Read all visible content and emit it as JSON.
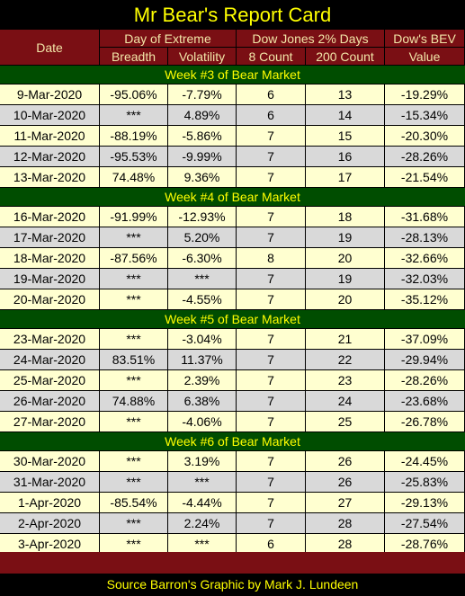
{
  "title": "Mr Bear's Report Card",
  "footer": "Source Barron's  Graphic by Mark J. Lundeen",
  "header": {
    "date": "Date",
    "day_of_extreme": "Day of Extreme",
    "dow_jones_2pct": "Dow Jones 2% Days",
    "dows_bev": "Dow's BEV",
    "breadth": "Breadth",
    "volatility": "Volatility",
    "count8": "8 Count",
    "count200": "200 Count",
    "value": "Value"
  },
  "weeks": [
    {
      "label": "Week #3 of Bear Market",
      "rows": [
        {
          "date": "9-Mar-2020",
          "breadth": "-95.06%",
          "volatility": "-7.79%",
          "count8": "6",
          "count200": "13",
          "bev": "-19.29%"
        },
        {
          "date": "10-Mar-2020",
          "breadth": "***",
          "volatility": "4.89%",
          "count8": "6",
          "count200": "14",
          "bev": "-15.34%"
        },
        {
          "date": "11-Mar-2020",
          "breadth": "-88.19%",
          "volatility": "-5.86%",
          "count8": "7",
          "count200": "15",
          "bev": "-20.30%"
        },
        {
          "date": "12-Mar-2020",
          "breadth": "-95.53%",
          "volatility": "-9.99%",
          "count8": "7",
          "count200": "16",
          "bev": "-28.26%"
        },
        {
          "date": "13-Mar-2020",
          "breadth": "74.48%",
          "volatility": "9.36%",
          "count8": "7",
          "count200": "17",
          "bev": "-21.54%"
        }
      ]
    },
    {
      "label": "Week #4 of Bear Market",
      "rows": [
        {
          "date": "16-Mar-2020",
          "breadth": "-91.99%",
          "volatility": "-12.93%",
          "count8": "7",
          "count200": "18",
          "bev": "-31.68%"
        },
        {
          "date": "17-Mar-2020",
          "breadth": "***",
          "volatility": "5.20%",
          "count8": "7",
          "count200": "19",
          "bev": "-28.13%"
        },
        {
          "date": "18-Mar-2020",
          "breadth": "-87.56%",
          "volatility": "-6.30%",
          "count8": "8",
          "count200": "20",
          "bev": "-32.66%"
        },
        {
          "date": "19-Mar-2020",
          "breadth": "***",
          "volatility": "***",
          "count8": "7",
          "count200": "19",
          "bev": "-32.03%"
        },
        {
          "date": "20-Mar-2020",
          "breadth": "***",
          "volatility": "-4.55%",
          "count8": "7",
          "count200": "20",
          "bev": "-35.12%"
        }
      ]
    },
    {
      "label": "Week #5 of Bear Market",
      "rows": [
        {
          "date": "23-Mar-2020",
          "breadth": "***",
          "volatility": "-3.04%",
          "count8": "7",
          "count200": "21",
          "bev": "-37.09%"
        },
        {
          "date": "24-Mar-2020",
          "breadth": "83.51%",
          "volatility": "11.37%",
          "count8": "7",
          "count200": "22",
          "bev": "-29.94%"
        },
        {
          "date": "25-Mar-2020",
          "breadth": "***",
          "volatility": "2.39%",
          "count8": "7",
          "count200": "23",
          "bev": "-28.26%"
        },
        {
          "date": "26-Mar-2020",
          "breadth": "74.88%",
          "volatility": "6.38%",
          "count8": "7",
          "count200": "24",
          "bev": "-23.68%"
        },
        {
          "date": "27-Mar-2020",
          "breadth": "***",
          "volatility": "-4.06%",
          "count8": "7",
          "count200": "25",
          "bev": "-26.78%"
        }
      ]
    },
    {
      "label": "Week #6 of Bear Market",
      "rows": [
        {
          "date": "30-Mar-2020",
          "breadth": "***",
          "volatility": "3.19%",
          "count8": "7",
          "count200": "26",
          "bev": "-24.45%"
        },
        {
          "date": "31-Mar-2020",
          "breadth": "***",
          "volatility": "***",
          "count8": "7",
          "count200": "26",
          "bev": "-25.83%"
        },
        {
          "date": "1-Apr-2020",
          "breadth": "-85.54%",
          "volatility": "-4.44%",
          "count8": "7",
          "count200": "27",
          "bev": "-29.13%"
        },
        {
          "date": "2-Apr-2020",
          "breadth": "***",
          "volatility": "2.24%",
          "count8": "7",
          "count200": "28",
          "bev": "-27.54%"
        },
        {
          "date": "3-Apr-2020",
          "breadth": "***",
          "volatility": "***",
          "count8": "6",
          "count200": "28",
          "bev": "-28.76%"
        }
      ]
    }
  ]
}
